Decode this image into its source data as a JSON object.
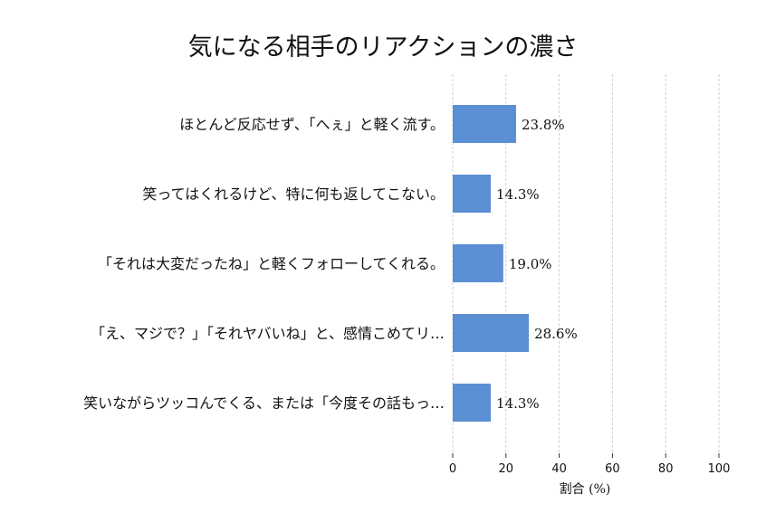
{
  "chart_data": {
    "type": "bar",
    "orientation": "horizontal",
    "title": "気になる相手のリアクションの濃さ",
    "xlabel": "割合 (%)",
    "ylabel": "",
    "xlim": [
      0,
      100
    ],
    "xticks": [
      0,
      20,
      40,
      60,
      80,
      100
    ],
    "grid": "x-dashed",
    "bar_color": "#5b8fd4",
    "categories": [
      "ほとんど反応せず、「へぇ」と軽く流す。",
      "笑ってはくれるけど、特に何も返してこない。",
      "「それは大変だったね」と軽くフォローしてくれる。",
      "「え、マジで？」「それヤバいね」と、感情こめてリ…",
      "笑いながらツッコんでくる、または「今度その話もっ…"
    ],
    "values": [
      23.8,
      14.3,
      19.0,
      28.6,
      14.3
    ],
    "value_labels": [
      "23.8%",
      "14.3%",
      "19.0%",
      "28.6%",
      "14.3%"
    ]
  }
}
